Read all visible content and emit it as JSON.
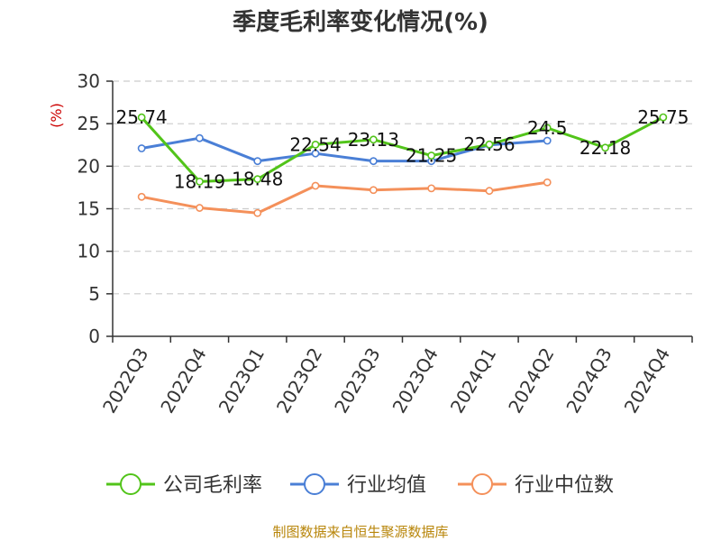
{
  "chart_data": {
    "type": "line",
    "title": "季度毛利率变化情况(%)",
    "ylabel": "(%)",
    "categories": [
      "2022Q3",
      "2022Q4",
      "2023Q1",
      "2023Q2",
      "2023Q3",
      "2023Q4",
      "2024Q1",
      "2024Q2",
      "2024Q3",
      "2024Q4"
    ],
    "yticks": [
      0,
      5,
      10,
      15,
      20,
      25,
      30
    ],
    "ylim": [
      0,
      30
    ],
    "grid": true,
    "legend_position": "bottom",
    "series": [
      {
        "name": "公司毛利率",
        "color": "#52c41a",
        "values": [
          25.74,
          18.19,
          18.48,
          22.54,
          23.13,
          21.25,
          22.56,
          24.5,
          22.18,
          25.75
        ],
        "labels": [
          "25.74",
          "18.19",
          "18.48",
          "22.54",
          "23.13",
          "21.25",
          "22.56",
          "24.5",
          "22.18",
          "25.75"
        ]
      },
      {
        "name": "行业均值",
        "color": "#4a7fd6",
        "values": [
          22.1,
          23.3,
          20.6,
          21.5,
          20.6,
          20.6,
          22.5,
          23.0,
          null,
          null
        ]
      },
      {
        "name": "行业中位数",
        "color": "#f4905a",
        "values": [
          16.4,
          15.1,
          14.5,
          17.7,
          17.2,
          17.4,
          17.1,
          18.1,
          null,
          null
        ]
      }
    ]
  },
  "footer": {
    "source": "制图数据来自恒生聚源数据库"
  },
  "colors": {
    "unit_label": "#cc0000",
    "grid": "#cccccc",
    "axis": "#333333"
  }
}
